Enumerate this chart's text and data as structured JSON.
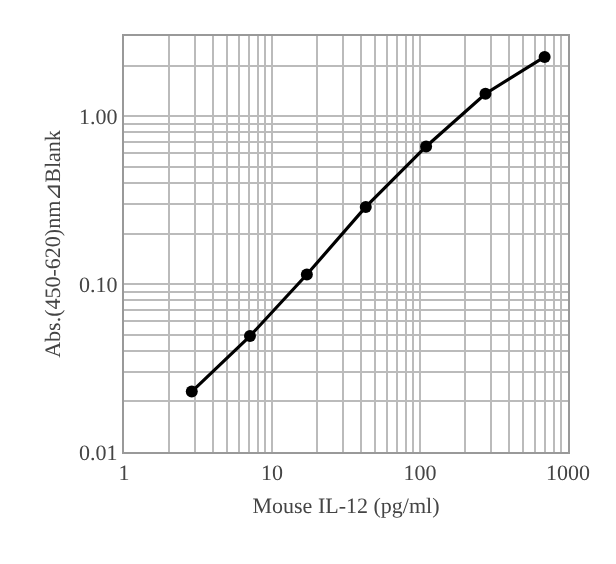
{
  "chart_data": {
    "type": "line",
    "xlabel": "Mouse IL-12 (pg/ml)",
    "ylabel": "Abs.(450-620)nm⊿Blank",
    "log": "xy",
    "grid": true,
    "marker": "circle",
    "line_style": "solid",
    "x": [
      2.87,
      7.1,
      17.2,
      43,
      110,
      277,
      695
    ],
    "series": [
      {
        "color": "#000000",
        "values": [
          0.0229,
          0.049,
          0.114,
          0.288,
          0.66,
          1.36,
          2.25
        ]
      }
    ],
    "xlim": [
      1,
      1000
    ],
    "ylim": [
      0.01,
      3
    ],
    "xticks": [
      1,
      {
        "value": 2,
        "label": null
      },
      {
        "value": 3,
        "label": null
      },
      {
        "value": 4,
        "label": null
      },
      {
        "value": 5,
        "label": null
      },
      {
        "value": 6,
        "label": null
      },
      {
        "value": 7,
        "label": null
      },
      {
        "value": 8,
        "label": null
      },
      {
        "value": 9,
        "label": null
      },
      10,
      {
        "value": 20,
        "label": null
      },
      {
        "value": 30,
        "label": null
      },
      {
        "value": 40,
        "label": null
      },
      {
        "value": 50,
        "label": null
      },
      {
        "value": 60,
        "label": null
      },
      {
        "value": 70,
        "label": null
      },
      {
        "value": 80,
        "label": null
      },
      {
        "value": 90,
        "label": null
      },
      100,
      {
        "value": 200,
        "label": null
      },
      {
        "value": 300,
        "label": null
      },
      {
        "value": 400,
        "label": null
      },
      {
        "value": 500,
        "label": null
      },
      {
        "value": 600,
        "label": null
      },
      {
        "value": 700,
        "label": null
      },
      {
        "value": 800,
        "label": null
      },
      {
        "value": 900,
        "label": null
      },
      1000
    ],
    "yticks": [
      {
        "value": 0.01,
        "label": "0.01"
      },
      {
        "value": 0.02,
        "label": null
      },
      {
        "value": 0.03,
        "label": null
      },
      {
        "value": 0.04,
        "label": null
      },
      {
        "value": 0.05,
        "label": null
      },
      {
        "value": 0.06,
        "label": null
      },
      {
        "value": 0.07,
        "label": null
      },
      {
        "value": 0.08,
        "label": null
      },
      {
        "value": 0.09,
        "label": null
      },
      {
        "value": 0.1,
        "label": "0.10"
      },
      {
        "value": 0.2,
        "label": null
      },
      {
        "value": 0.3,
        "label": null
      },
      {
        "value": 0.4,
        "label": null
      },
      {
        "value": 0.5,
        "label": null
      },
      {
        "value": 0.6,
        "label": null
      },
      {
        "value": 0.7,
        "label": null
      },
      {
        "value": 0.8,
        "label": null
      },
      {
        "value": 0.9,
        "label": null
      },
      {
        "value": 1,
        "label": "1.00"
      },
      {
        "value": 2,
        "label": null
      },
      {
        "value": 3,
        "label": null
      }
    ]
  }
}
